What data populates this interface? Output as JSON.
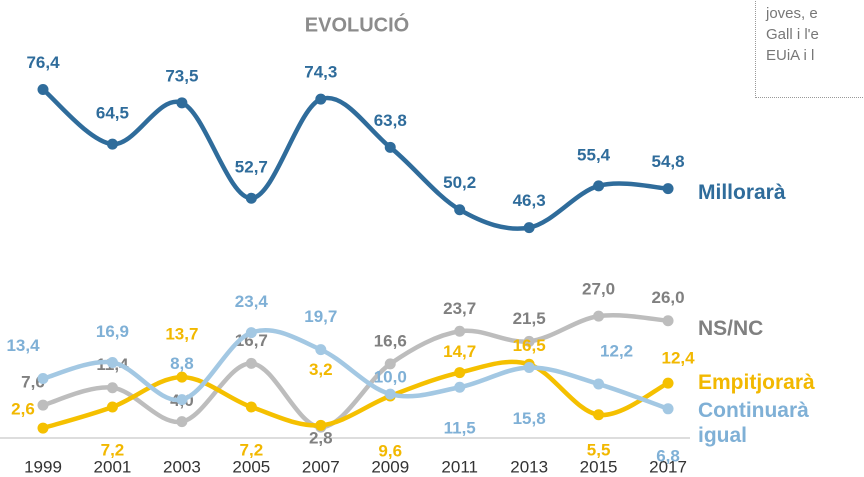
{
  "chart_data": {
    "type": "line",
    "title": "EVOLUCIÓ",
    "categories": [
      "1999",
      "2001",
      "2003",
      "2005",
      "2007",
      "2009",
      "2011",
      "2013",
      "2015",
      "2017"
    ],
    "ylim": [
      0,
      80
    ],
    "annotation": [
      "joves, e",
      "Gall i l'e",
      "EUiA i l"
    ],
    "series": [
      {
        "name": "Millorarà",
        "color": "#2f6c9b",
        "label_color": "#2f6c9b",
        "values": [
          76.4,
          64.5,
          73.5,
          52.7,
          74.3,
          63.8,
          50.2,
          46.3,
          55.4,
          54.8
        ],
        "value_labels": [
          "76,4",
          "64,5",
          "73,5",
          "52,7",
          "74,3",
          "63,8",
          "50,2",
          "46,3",
          "55,4",
          "54,8"
        ]
      },
      {
        "name": "NS/NC",
        "color": "#bdbdbd",
        "label_color": "#808080",
        "values": [
          7.6,
          11.4,
          4.0,
          16.7,
          2.8,
          16.6,
          23.7,
          21.5,
          27.0,
          26.0
        ],
        "value_labels": [
          "7,6",
          "11,4",
          "4,0",
          "16,7",
          "2,8",
          "16,6",
          "23,7",
          "21,5",
          "27,0",
          "26,0"
        ]
      },
      {
        "name": "Empitjorarà",
        "color": "#f5c000",
        "label_color": "#f2b800",
        "values": [
          2.6,
          7.2,
          13.7,
          7.2,
          3.2,
          9.6,
          14.7,
          16.5,
          5.5,
          12.4
        ],
        "value_labels": [
          "2,6",
          "7,2",
          "13,7",
          "7,2",
          "3,2",
          "9,6",
          "14,7",
          "16,5",
          "5,5",
          "12,4"
        ]
      },
      {
        "name": "Continuarà igual",
        "color": "#a3c8e3",
        "label_color": "#7fb0d6",
        "values": [
          13.4,
          16.9,
          8.8,
          23.4,
          19.7,
          10.0,
          11.5,
          15.8,
          12.2,
          6.8
        ],
        "value_labels": [
          "13,4",
          "16,9",
          "8,8",
          "23,4",
          "19,7",
          "10,0",
          "11,5",
          "15,8",
          "12,2",
          "6,8"
        ]
      }
    ]
  }
}
